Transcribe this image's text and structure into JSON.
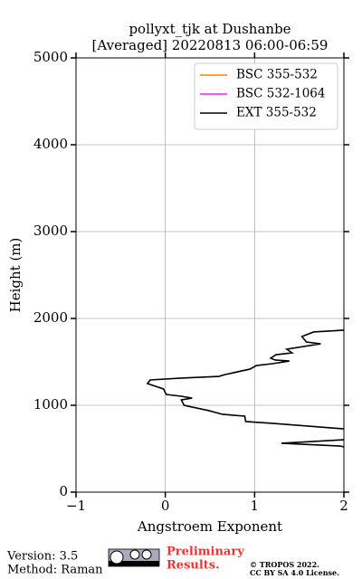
{
  "chart_data": {
    "type": "line",
    "title": [
      "pollyxt_tjk at Dushanbe",
      "[Averaged] 20220813 06:00-06:59"
    ],
    "x_label": "Angstroem Exponent",
    "y_label": "Height (m)",
    "xlim": [
      -1,
      2
    ],
    "xticks": [
      {
        "value": -1,
        "label": "−1"
      },
      0,
      1,
      2
    ],
    "ylim": [
      0,
      5000
    ],
    "yticks": [
      0,
      1000,
      2000,
      3000,
      4000,
      5000
    ],
    "grid": true,
    "legend": "upper right",
    "series": [
      {
        "name": "BSC 355-532",
        "color": "#ff7f0e",
        "values": [],
        "heights": []
      },
      {
        "name": "BSC 532-1064",
        "color": "#ee22ee",
        "values": [],
        "heights": []
      },
      {
        "name": "EXT 355-532",
        "color": "#000000",
        "values": [
          2.0,
          1.66,
          1.53,
          1.58,
          1.74,
          1.36,
          1.42,
          1.24,
          1.18,
          1.23,
          1.39,
          1.2,
          1.02,
          0.95,
          0.67,
          0.6,
          0.18,
          -0.17,
          -0.2,
          -0.02,
          0.01,
          0.18,
          0.3,
          0.18,
          0.21,
          0.49,
          0.64,
          0.89,
          0.9,
          1.2,
          2.0,
          null,
          2.0,
          1.3,
          1.96,
          2.0
        ],
        "heights": [
          1865,
          1844,
          1792,
          1729,
          1708,
          1646,
          1604,
          1583,
          1542,
          1521,
          1510,
          1479,
          1458,
          1417,
          1354,
          1333,
          1313,
          1292,
          1250,
          1188,
          1125,
          1104,
          1083,
          1063,
          1000,
          938,
          896,
          875,
          813,
          792,
          729,
          null,
          604,
          563,
          531,
          521
        ]
      }
    ]
  },
  "footer": {
    "version": "Version: 3.5",
    "method": "Method: Raman",
    "notice": [
      "Preliminary",
      "Results."
    ],
    "license": [
      "© TROPOS 2022.",
      "CC BY SA 4.0 License."
    ]
  }
}
